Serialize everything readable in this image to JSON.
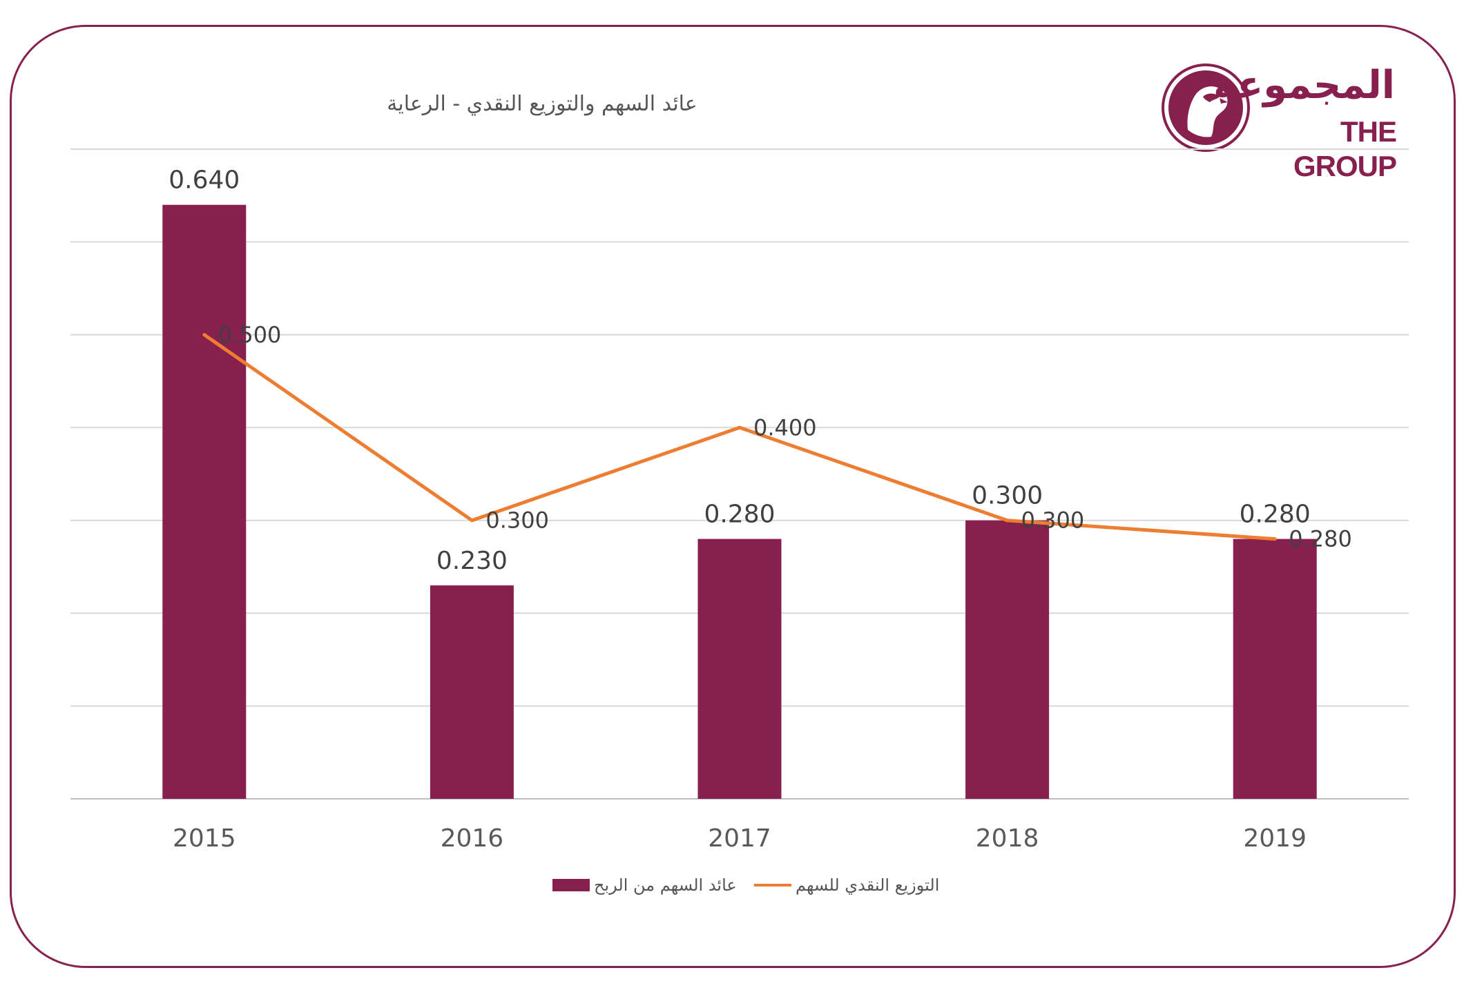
{
  "chart_data": {
    "type": "bar",
    "title": "عائد السهم والتوزيع النقدي - الرعاية",
    "categories": [
      "2015",
      "2016",
      "2017",
      "2018",
      "2019"
    ],
    "series": [
      {
        "name": "عائد السهم من الربح",
        "type": "bar",
        "color": "#87204f",
        "values": [
          0.64,
          0.23,
          0.28,
          0.3,
          0.28
        ],
        "labels": [
          "0.640",
          "0.230",
          "0.280",
          "0.300",
          "0.280"
        ]
      },
      {
        "name": "التوزيع النقدي للسهم",
        "type": "line",
        "color": "#ed7d31",
        "values": [
          0.5,
          0.3,
          0.4,
          0.3,
          0.28
        ],
        "labels": [
          "0.500",
          "0.300",
          "0.400",
          "0.300",
          "0.280"
        ]
      }
    ],
    "ylim": [
      0,
      0.7
    ],
    "grid": true,
    "legend": "bottom"
  },
  "logo": {
    "arabic": "المجموعة",
    "english": "THE GROUP"
  },
  "colors": {
    "brand": "#87204f",
    "line": "#ed7d31",
    "grid": "#d9d9d9",
    "text": "#404040"
  }
}
